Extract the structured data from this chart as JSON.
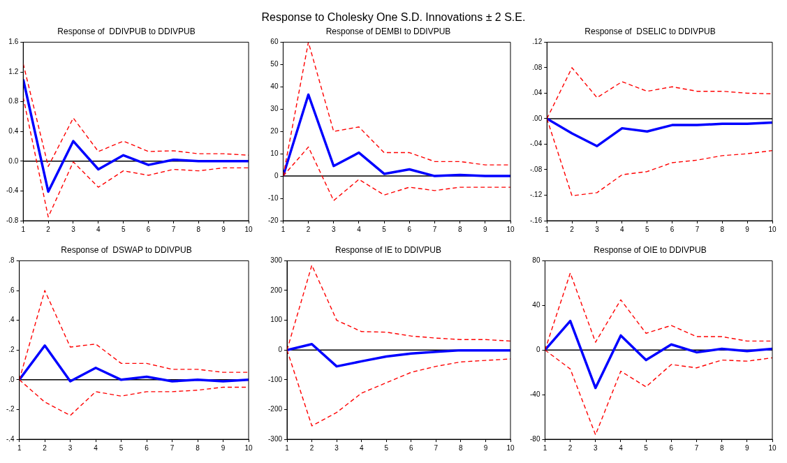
{
  "chart_data": [
    {
      "type": "line",
      "title": "Response of  DDIVPUB to DDIVPUB",
      "annotations": [
        "Response to Cholesky One S.D. Innovations ± 2 S.E."
      ],
      "x": [
        1,
        2,
        3,
        4,
        5,
        6,
        7,
        8,
        9,
        10
      ],
      "xlim": [
        1,
        10
      ],
      "xticks": [
        1,
        2,
        3,
        4,
        5,
        6,
        7,
        8,
        9,
        10
      ],
      "ylim": [
        -0.8,
        1.6
      ],
      "yticks": [
        {
          "value": -0.8,
          "label": "-0.8"
        },
        {
          "value": -0.4,
          "label": "-0.4"
        },
        {
          "value": 0,
          "label": "0.0"
        },
        {
          "value": 0.4,
          "label": "0.4"
        },
        {
          "value": 0.8,
          "label": "0.8"
        },
        {
          "value": 1.2,
          "label": "1.2"
        },
        {
          "value": 1.6,
          "label": "1.6"
        }
      ],
      "marker": "none",
      "ref_lines": [
        {
          "axis": "y",
          "value": 0,
          "color": "#000000"
        }
      ],
      "series": [
        {
          "color": "#0000ff",
          "line_style": "solid",
          "values": [
            1.1,
            -0.41,
            0.27,
            -0.11,
            0.08,
            -0.05,
            0.02,
            0.0,
            0.0,
            0.0
          ]
        },
        {
          "color": "#ff0000",
          "line_style": "dashed",
          "values": [
            1.31,
            -0.07,
            0.58,
            0.13,
            0.27,
            0.13,
            0.14,
            0.1,
            0.1,
            0.08
          ]
        },
        {
          "color": "#ff0000",
          "line_style": "dashed",
          "values": [
            0.86,
            -0.75,
            -0.01,
            -0.35,
            -0.13,
            -0.19,
            -0.11,
            -0.13,
            -0.09,
            -0.09
          ]
        }
      ]
    },
    {
      "type": "line",
      "title": "Response of DEMBI to DDIVPUB",
      "x": [
        1,
        2,
        3,
        4,
        5,
        6,
        7,
        8,
        9,
        10
      ],
      "xlim": [
        1,
        10
      ],
      "xticks": [
        1,
        2,
        3,
        4,
        5,
        6,
        7,
        8,
        9,
        10
      ],
      "ylim": [
        -20,
        60
      ],
      "yticks": [
        -20,
        -10,
        0,
        10,
        20,
        30,
        40,
        50,
        60
      ],
      "marker": "none",
      "ref_lines": [
        {
          "axis": "y",
          "value": 0,
          "color": "#000000"
        }
      ],
      "series": [
        {
          "color": "#0000ff",
          "line_style": "solid",
          "values": [
            0,
            36.5,
            4.5,
            10.5,
            1,
            3,
            0,
            0.5,
            0,
            0
          ]
        },
        {
          "color": "#ff0000",
          "line_style": "dashed",
          "values": [
            0,
            60,
            20,
            22,
            10.5,
            10.5,
            6.5,
            6.5,
            5,
            5
          ]
        },
        {
          "color": "#ff0000",
          "line_style": "dashed",
          "values": [
            0,
            13,
            -11,
            -1.5,
            -8.5,
            -5,
            -6.5,
            -5,
            -5,
            -5
          ]
        }
      ]
    },
    {
      "type": "line",
      "title": "Response of  DSELIC to DDIVPUB",
      "x": [
        1,
        2,
        3,
        4,
        5,
        6,
        7,
        8,
        9,
        10
      ],
      "xlim": [
        1,
        10
      ],
      "xticks": [
        1,
        2,
        3,
        4,
        5,
        6,
        7,
        8,
        9,
        10
      ],
      "ylim": [
        -0.16,
        0.12
      ],
      "yticks": [
        {
          "value": -0.16,
          "label": "-.16"
        },
        {
          "value": -0.12,
          "label": "-.12"
        },
        {
          "value": -0.08,
          "label": "-.08"
        },
        {
          "value": -0.04,
          "label": "-.04"
        },
        {
          "value": 0,
          "label": ".00"
        },
        {
          "value": 0.04,
          "label": ".04"
        },
        {
          "value": 0.08,
          "label": ".08"
        },
        {
          "value": 0.12,
          "label": ".12"
        }
      ],
      "marker": "none",
      "ref_lines": [
        {
          "axis": "y",
          "value": 0,
          "color": "#000000"
        }
      ],
      "series": [
        {
          "color": "#0000ff",
          "line_style": "solid",
          "values": [
            0,
            -0.023,
            -0.043,
            -0.015,
            -0.02,
            -0.01,
            -0.01,
            -0.008,
            -0.008,
            -0.006
          ]
        },
        {
          "color": "#ff0000",
          "line_style": "dashed",
          "values": [
            0,
            0.08,
            0.033,
            0.058,
            0.043,
            0.05,
            0.043,
            0.043,
            0.04,
            0.039
          ]
        },
        {
          "color": "#ff0000",
          "line_style": "dashed",
          "values": [
            0,
            -0.121,
            -0.116,
            -0.088,
            -0.083,
            -0.069,
            -0.065,
            -0.058,
            -0.055,
            -0.05
          ]
        }
      ]
    },
    {
      "type": "line",
      "title": "Response of  DSWAP to DDIVPUB",
      "x": [
        1,
        2,
        3,
        4,
        5,
        6,
        7,
        8,
        9,
        10
      ],
      "xlim": [
        1,
        10
      ],
      "xticks": [
        1,
        2,
        3,
        4,
        5,
        6,
        7,
        8,
        9,
        10
      ],
      "ylim": [
        -0.4,
        0.8
      ],
      "yticks": [
        {
          "value": -0.4,
          "label": "-.4"
        },
        {
          "value": -0.2,
          "label": "-.2"
        },
        {
          "value": 0,
          "label": ".0"
        },
        {
          "value": 0.2,
          "label": ".2"
        },
        {
          "value": 0.4,
          "label": ".4"
        },
        {
          "value": 0.6,
          "label": ".6"
        },
        {
          "value": 0.8,
          "label": ".8"
        }
      ],
      "marker": "none",
      "ref_lines": [
        {
          "axis": "y",
          "value": 0,
          "color": "#000000"
        }
      ],
      "series": [
        {
          "color": "#0000ff",
          "line_style": "solid",
          "values": [
            0,
            0.23,
            -0.01,
            0.08,
            0.0,
            0.02,
            -0.01,
            0.0,
            -0.01,
            0.0
          ]
        },
        {
          "color": "#ff0000",
          "line_style": "dashed",
          "values": [
            0,
            0.6,
            0.22,
            0.24,
            0.11,
            0.11,
            0.07,
            0.07,
            0.05,
            0.05
          ]
        },
        {
          "color": "#ff0000",
          "line_style": "dashed",
          "values": [
            0,
            -0.15,
            -0.24,
            -0.08,
            -0.11,
            -0.08,
            -0.08,
            -0.07,
            -0.05,
            -0.05
          ]
        }
      ]
    },
    {
      "type": "line",
      "title": "Response of IE to DDIVPUB",
      "x": [
        1,
        2,
        3,
        4,
        5,
        6,
        7,
        8,
        9,
        10
      ],
      "xlim": [
        1,
        10
      ],
      "xticks": [
        1,
        2,
        3,
        4,
        5,
        6,
        7,
        8,
        9,
        10
      ],
      "ylim": [
        -300,
        300
      ],
      "yticks": [
        -300,
        -200,
        -100,
        0,
        100,
        200,
        300
      ],
      "marker": "none",
      "ref_lines": [
        {
          "axis": "y",
          "value": 0,
          "color": "#000000"
        }
      ],
      "series": [
        {
          "color": "#0000ff",
          "line_style": "solid",
          "values": [
            0,
            20,
            -55,
            -38,
            -22,
            -12,
            -6,
            -1,
            -1,
            -1
          ]
        },
        {
          "color": "#ff0000",
          "line_style": "dashed",
          "values": [
            0,
            285,
            100,
            62,
            60,
            47,
            40,
            35,
            35,
            30
          ]
        },
        {
          "color": "#ff0000",
          "line_style": "dashed",
          "values": [
            0,
            -255,
            -210,
            -145,
            -110,
            -75,
            -55,
            -40,
            -35,
            -30
          ]
        }
      ]
    },
    {
      "type": "line",
      "title": "Response of OIE to DDIVPUB",
      "x": [
        1,
        2,
        3,
        4,
        5,
        6,
        7,
        8,
        9,
        10
      ],
      "xlim": [
        1,
        10
      ],
      "xticks": [
        1,
        2,
        3,
        4,
        5,
        6,
        7,
        8,
        9,
        10
      ],
      "ylim": [
        -80,
        80
      ],
      "yticks": [
        -80,
        -40,
        0,
        40,
        80
      ],
      "marker": "none",
      "ref_lines": [
        {
          "axis": "y",
          "value": 0,
          "color": "#000000"
        }
      ],
      "series": [
        {
          "color": "#0000ff",
          "line_style": "solid",
          "values": [
            0,
            26,
            -34,
            13,
            -9,
            5,
            -2,
            1,
            -1,
            1
          ]
        },
        {
          "color": "#ff0000",
          "line_style": "dashed",
          "values": [
            0,
            69,
            7,
            45,
            15,
            22,
            12,
            12,
            8,
            8
          ]
        },
        {
          "color": "#ff0000",
          "line_style": "dashed",
          "values": [
            0,
            -17,
            -76,
            -19,
            -33,
            -13,
            -16,
            -9,
            -10,
            -7
          ]
        }
      ]
    }
  ]
}
